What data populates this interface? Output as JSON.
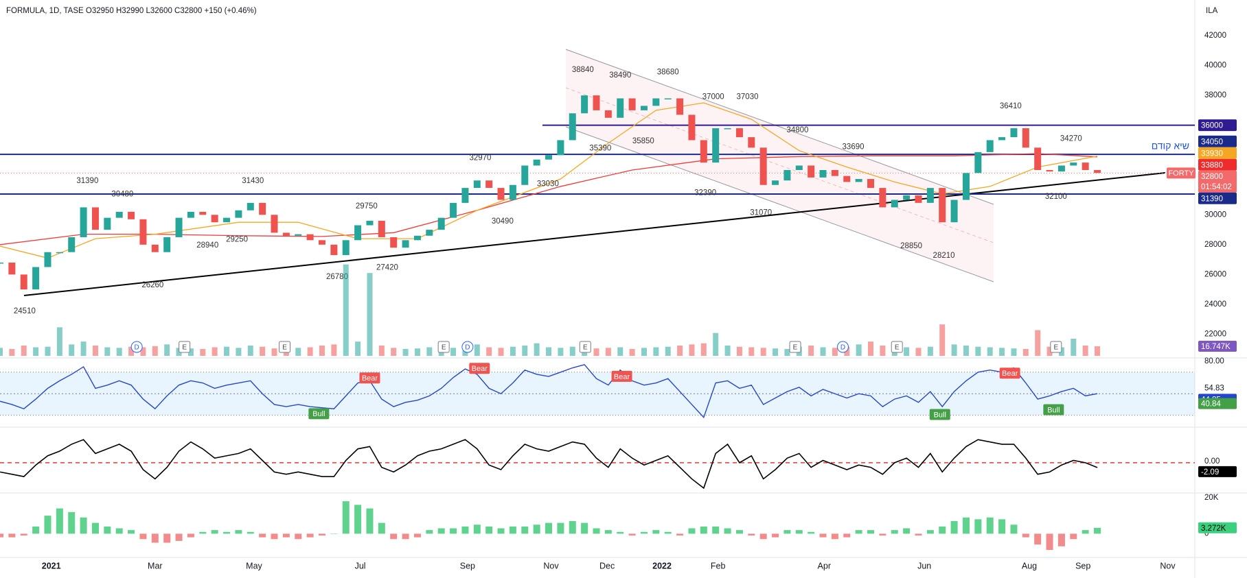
{
  "chart_data": {
    "type": "candlestick",
    "title": "FORMULA, 1D, TASE O32950 H32990 L32600 C32800 +150 (+0.46%)",
    "currency": "ILA",
    "up_color": "#26a69a",
    "down_color": "#ef5350",
    "xlim": [
      0,
      100
    ],
    "xticks": [
      {
        "value": 4.3,
        "label": "2021"
      },
      {
        "value": 13,
        "label": "Mar"
      },
      {
        "value": 21.3,
        "label": "May"
      },
      {
        "value": 30.2,
        "label": "Jul"
      },
      {
        "value": 39.2,
        "label": "Sep"
      },
      {
        "value": 46.2,
        "label": "Nov"
      },
      {
        "value": 50.9,
        "label": "Dec"
      },
      {
        "value": 55.5,
        "label": "2022"
      },
      {
        "value": 60.2,
        "label": "Feb"
      },
      {
        "value": 69.1,
        "label": "Apr"
      },
      {
        "value": 77.5,
        "label": "Jun"
      },
      {
        "value": 86.3,
        "label": "Aug"
      },
      {
        "value": 90.8,
        "label": "Sep"
      },
      {
        "value": 97.9,
        "label": "Nov"
      }
    ],
    "ylim": [
      20460,
      44390
    ],
    "yticks": [
      42000,
      40000,
      38000,
      36000,
      34000,
      32000,
      30000,
      28000,
      26000,
      24000,
      22000
    ],
    "values": [
      26800,
      26000,
      25000,
      26500,
      27500,
      27500,
      28500,
      30500,
      29000,
      29800,
      30200,
      29700,
      28000,
      27500,
      28500,
      29800,
      30200,
      30000,
      29500,
      29800,
      30300,
      30800,
      30000,
      28800,
      28600,
      28700,
      28300,
      28000,
      27300,
      28300,
      29300,
      29600,
      28500,
      27800,
      28300,
      28600,
      29000,
      29800,
      30800,
      31800,
      32300,
      31800,
      31000,
      32000,
      33300,
      33700,
      34000,
      35000,
      36800,
      38000,
      37000,
      36500,
      37800,
      37000,
      37300,
      37800,
      37800,
      36700,
      35000,
      33500,
      35800,
      35800,
      35200,
      34500,
      32000,
      32300,
      33000,
      33300,
      32500,
      33000,
      32600,
      32200,
      32400,
      31800,
      30500,
      31000,
      31300,
      30800,
      31800,
      29500,
      31000,
      32800,
      34200,
      35000,
      35200,
      35800,
      34500,
      33000,
      32900,
      33300,
      33500,
      33000,
      32800
    ],
    "moving_averages": [
      {
        "color": "#ef3a3a",
        "x": [
          0,
          7,
          13,
          20,
          27,
          33,
          40,
          47,
          53,
          60,
          67,
          73,
          80,
          87,
          92
        ],
        "values": [
          28000,
          28700,
          28700,
          28600,
          28550,
          28800,
          30300,
          31900,
          33000,
          33750,
          33900,
          33950,
          33950,
          34100,
          33880
        ]
      },
      {
        "color": "#f5a623",
        "x": [
          0,
          4,
          8,
          13,
          20,
          25,
          30,
          35,
          40,
          47,
          51,
          55,
          59,
          63,
          67,
          71,
          75,
          79,
          83,
          87,
          92
        ],
        "values": [
          27900,
          27100,
          28400,
          28700,
          29500,
          29500,
          28400,
          28400,
          30300,
          32400,
          34800,
          37000,
          37500,
          36400,
          34300,
          33200,
          32200,
          31400,
          31900,
          33200,
          33930
        ]
      }
    ],
    "pivot_labels": [
      38840,
      38490,
      38680,
      37000,
      37030,
      36410,
      34800,
      34270,
      33690,
      35390,
      35850,
      32970,
      33030,
      31390,
      30480,
      31430,
      29750,
      29250,
      28940,
      26260,
      26780,
      27420,
      24510,
      30490,
      32390,
      31070,
      28850,
      28210,
      32100
    ],
    "price_markers": [
      {
        "value": 36000,
        "color": "#311b92"
      },
      {
        "value": 34050,
        "color": "#1a2a8a"
      },
      {
        "value": 33930,
        "color": "#f5a623"
      },
      {
        "value": 33880,
        "color": "#ef2c2c"
      },
      {
        "value": 32800,
        "color": "#f26a6a",
        "name": "FORTY",
        "countdown": "01:54:02"
      },
      {
        "value": 31390,
        "color": "#1a2a8a"
      }
    ],
    "annotations": [
      "שיא קודם"
    ],
    "volume": {
      "ylim": [
        0,
        180
      ],
      "yticks": [
        {
          "value": 16.747,
          "label": "16.747K"
        }
      ],
      "color": "#7e57c2",
      "values": [
        14,
        12,
        18,
        15,
        16,
        50,
        20,
        25,
        18,
        15,
        14,
        16,
        15,
        17,
        20,
        14,
        13,
        12,
        15,
        16,
        14,
        18,
        16,
        13,
        12,
        14,
        15,
        18,
        20,
        160,
        25,
        145,
        18,
        14,
        12,
        13,
        15,
        16,
        14,
        18,
        20,
        15,
        14,
        16,
        18,
        22,
        15,
        14,
        16,
        15,
        13,
        14,
        15,
        12,
        14,
        15,
        16,
        18,
        20,
        22,
        40,
        18,
        16,
        15,
        14,
        13,
        12,
        16,
        18,
        15,
        14,
        16,
        20,
        25,
        18,
        20,
        15,
        14,
        16,
        55,
        20,
        18,
        16,
        15,
        14,
        13,
        12,
        45,
        16,
        15,
        30,
        18,
        16.747
      ]
    },
    "events": [
      "D",
      "E",
      "E",
      "E",
      "D",
      "E",
      "E",
      "D",
      "E",
      "E"
    ],
    "rsi": {
      "ylim": [
        19.6,
        82.6
      ],
      "yticks": [
        {
          "value": 80,
          "label": "80.00"
        },
        54.83,
        44.85,
        40.84
      ],
      "bands": [
        70,
        50,
        30
      ],
      "color": "#2447c9",
      "values": [
        43,
        40,
        36,
        45,
        55,
        62,
        68,
        75,
        55,
        58,
        62,
        58,
        45,
        36,
        48,
        58,
        62,
        60,
        55,
        58,
        60,
        62,
        50,
        40,
        38,
        40,
        38,
        37,
        36,
        48,
        60,
        62,
        45,
        38,
        42,
        44,
        48,
        55,
        65,
        73,
        68,
        55,
        50,
        60,
        72,
        68,
        66,
        70,
        74,
        77,
        64,
        58,
        72,
        62,
        58,
        60,
        64,
        52,
        40,
        28,
        60,
        62,
        55,
        58,
        40,
        46,
        52,
        56,
        48,
        54,
        50,
        46,
        50,
        48,
        38,
        45,
        48,
        42,
        52,
        38,
        52,
        62,
        70,
        72,
        70,
        74,
        60,
        45,
        48,
        52,
        55,
        48,
        50
      ],
      "signals": [
        "Bear",
        "Bear",
        "Bear",
        "Bear",
        "Bull",
        "Bull",
        "Bull"
      ]
    },
    "oscillator": {
      "ylim": [
        -12.8,
        14.8
      ],
      "yticks": [
        {
          "value": 0,
          "label": "0.00"
        },
        -2.09
      ],
      "color": "#000000",
      "values": [
        -4,
        -5,
        -6,
        -1,
        3,
        5,
        8,
        10,
        4,
        6,
        8,
        5,
        -3,
        -7,
        -2,
        5,
        9,
        6,
        2,
        3,
        4,
        6,
        1,
        -4,
        -5,
        -4,
        -5,
        -6,
        -6,
        1,
        6,
        7,
        -2,
        -4,
        -1,
        3,
        5,
        6,
        8,
        10,
        6,
        -1,
        -3,
        3,
        8,
        6,
        5,
        7,
        9,
        8,
        2,
        -2,
        6,
        2,
        -1,
        1,
        3,
        -2,
        -7,
        -11,
        4,
        8,
        0,
        3,
        -7,
        -3,
        2,
        4,
        -2,
        1,
        -1,
        -3,
        -1,
        -2,
        -5,
        0,
        2,
        -2,
        4,
        -4,
        2,
        7,
        10,
        9,
        8,
        8,
        2,
        -5,
        -4,
        -1,
        1,
        0,
        -2.09
      ]
    },
    "histogram": {
      "ylim": [
        -12.4,
        22.2
      ],
      "yticks": [
        {
          "value": 20,
          "label": "20K"
        },
        0,
        {
          "value": 3.272,
          "label": "3.272K"
        }
      ],
      "up_color": "#5fd38d",
      "down_color": "#f28b8b",
      "values": [
        -2,
        -2,
        -1,
        4,
        10,
        14,
        12,
        9,
        6,
        4,
        3,
        2,
        -3,
        -5,
        -5,
        -4,
        -2,
        1,
        2,
        1,
        2,
        1,
        -2,
        -3,
        -2,
        -3,
        -2,
        -1,
        0,
        18,
        16,
        14,
        6,
        -3,
        -3,
        -2,
        2,
        3,
        3,
        4,
        5,
        4,
        3,
        4,
        4,
        5,
        6,
        6,
        7,
        6,
        3,
        2,
        1,
        -1,
        1,
        2,
        1,
        -1,
        3,
        4,
        4,
        3,
        2,
        -1,
        -3,
        -2,
        2,
        2,
        1,
        -2,
        -3,
        -2,
        2,
        2,
        -1,
        2,
        3,
        -1,
        2,
        4,
        7,
        9,
        8,
        9,
        8,
        5,
        -2,
        -6,
        -9,
        -7,
        -3,
        2,
        3.272
      ]
    }
  }
}
